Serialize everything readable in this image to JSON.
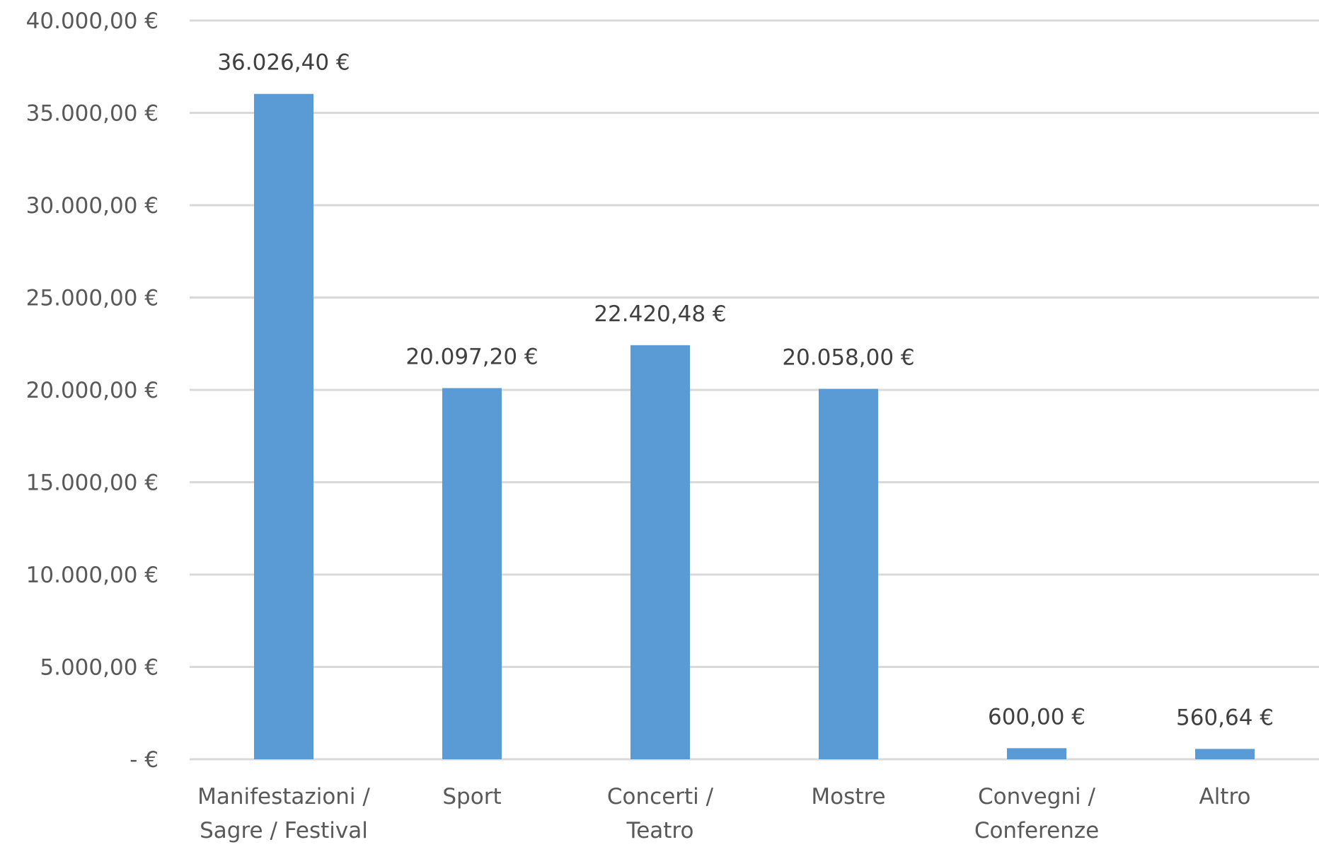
{
  "chart_data": {
    "type": "bar",
    "categories": [
      [
        "Manifestazioni /",
        "Sagre / Festival"
      ],
      [
        "Sport"
      ],
      [
        "Concerti /",
        "Teatro"
      ],
      [
        "Mostre"
      ],
      [
        "Convegni /",
        "Conferenze"
      ],
      [
        "Altro"
      ]
    ],
    "values": [
      36026.4,
      20097.2,
      22420.48,
      20058.0,
      600.0,
      560.64
    ],
    "data_labels": [
      "36.026,40 €",
      "20.097,20 €",
      "22.420,48 €",
      "20.058,00 €",
      "600,00 €",
      "560,64 €"
    ],
    "ylim": [
      0,
      40000
    ],
    "yticks": [
      0,
      5000,
      10000,
      15000,
      20000,
      25000,
      30000,
      35000,
      40000
    ],
    "ytick_labels": [
      " -  € ",
      "5.000,00 €",
      "10.000,00 €",
      "15.000,00 €",
      "20.000,00 €",
      "25.000,00 €",
      "30.000,00 €",
      "35.000,00 €",
      "40.000,00 €"
    ],
    "title": "",
    "xlabel": "",
    "ylabel": "",
    "grid": true,
    "legend": "none",
    "bar_color": "#5b9bd5",
    "grid_color": "#d9d9d9"
  }
}
